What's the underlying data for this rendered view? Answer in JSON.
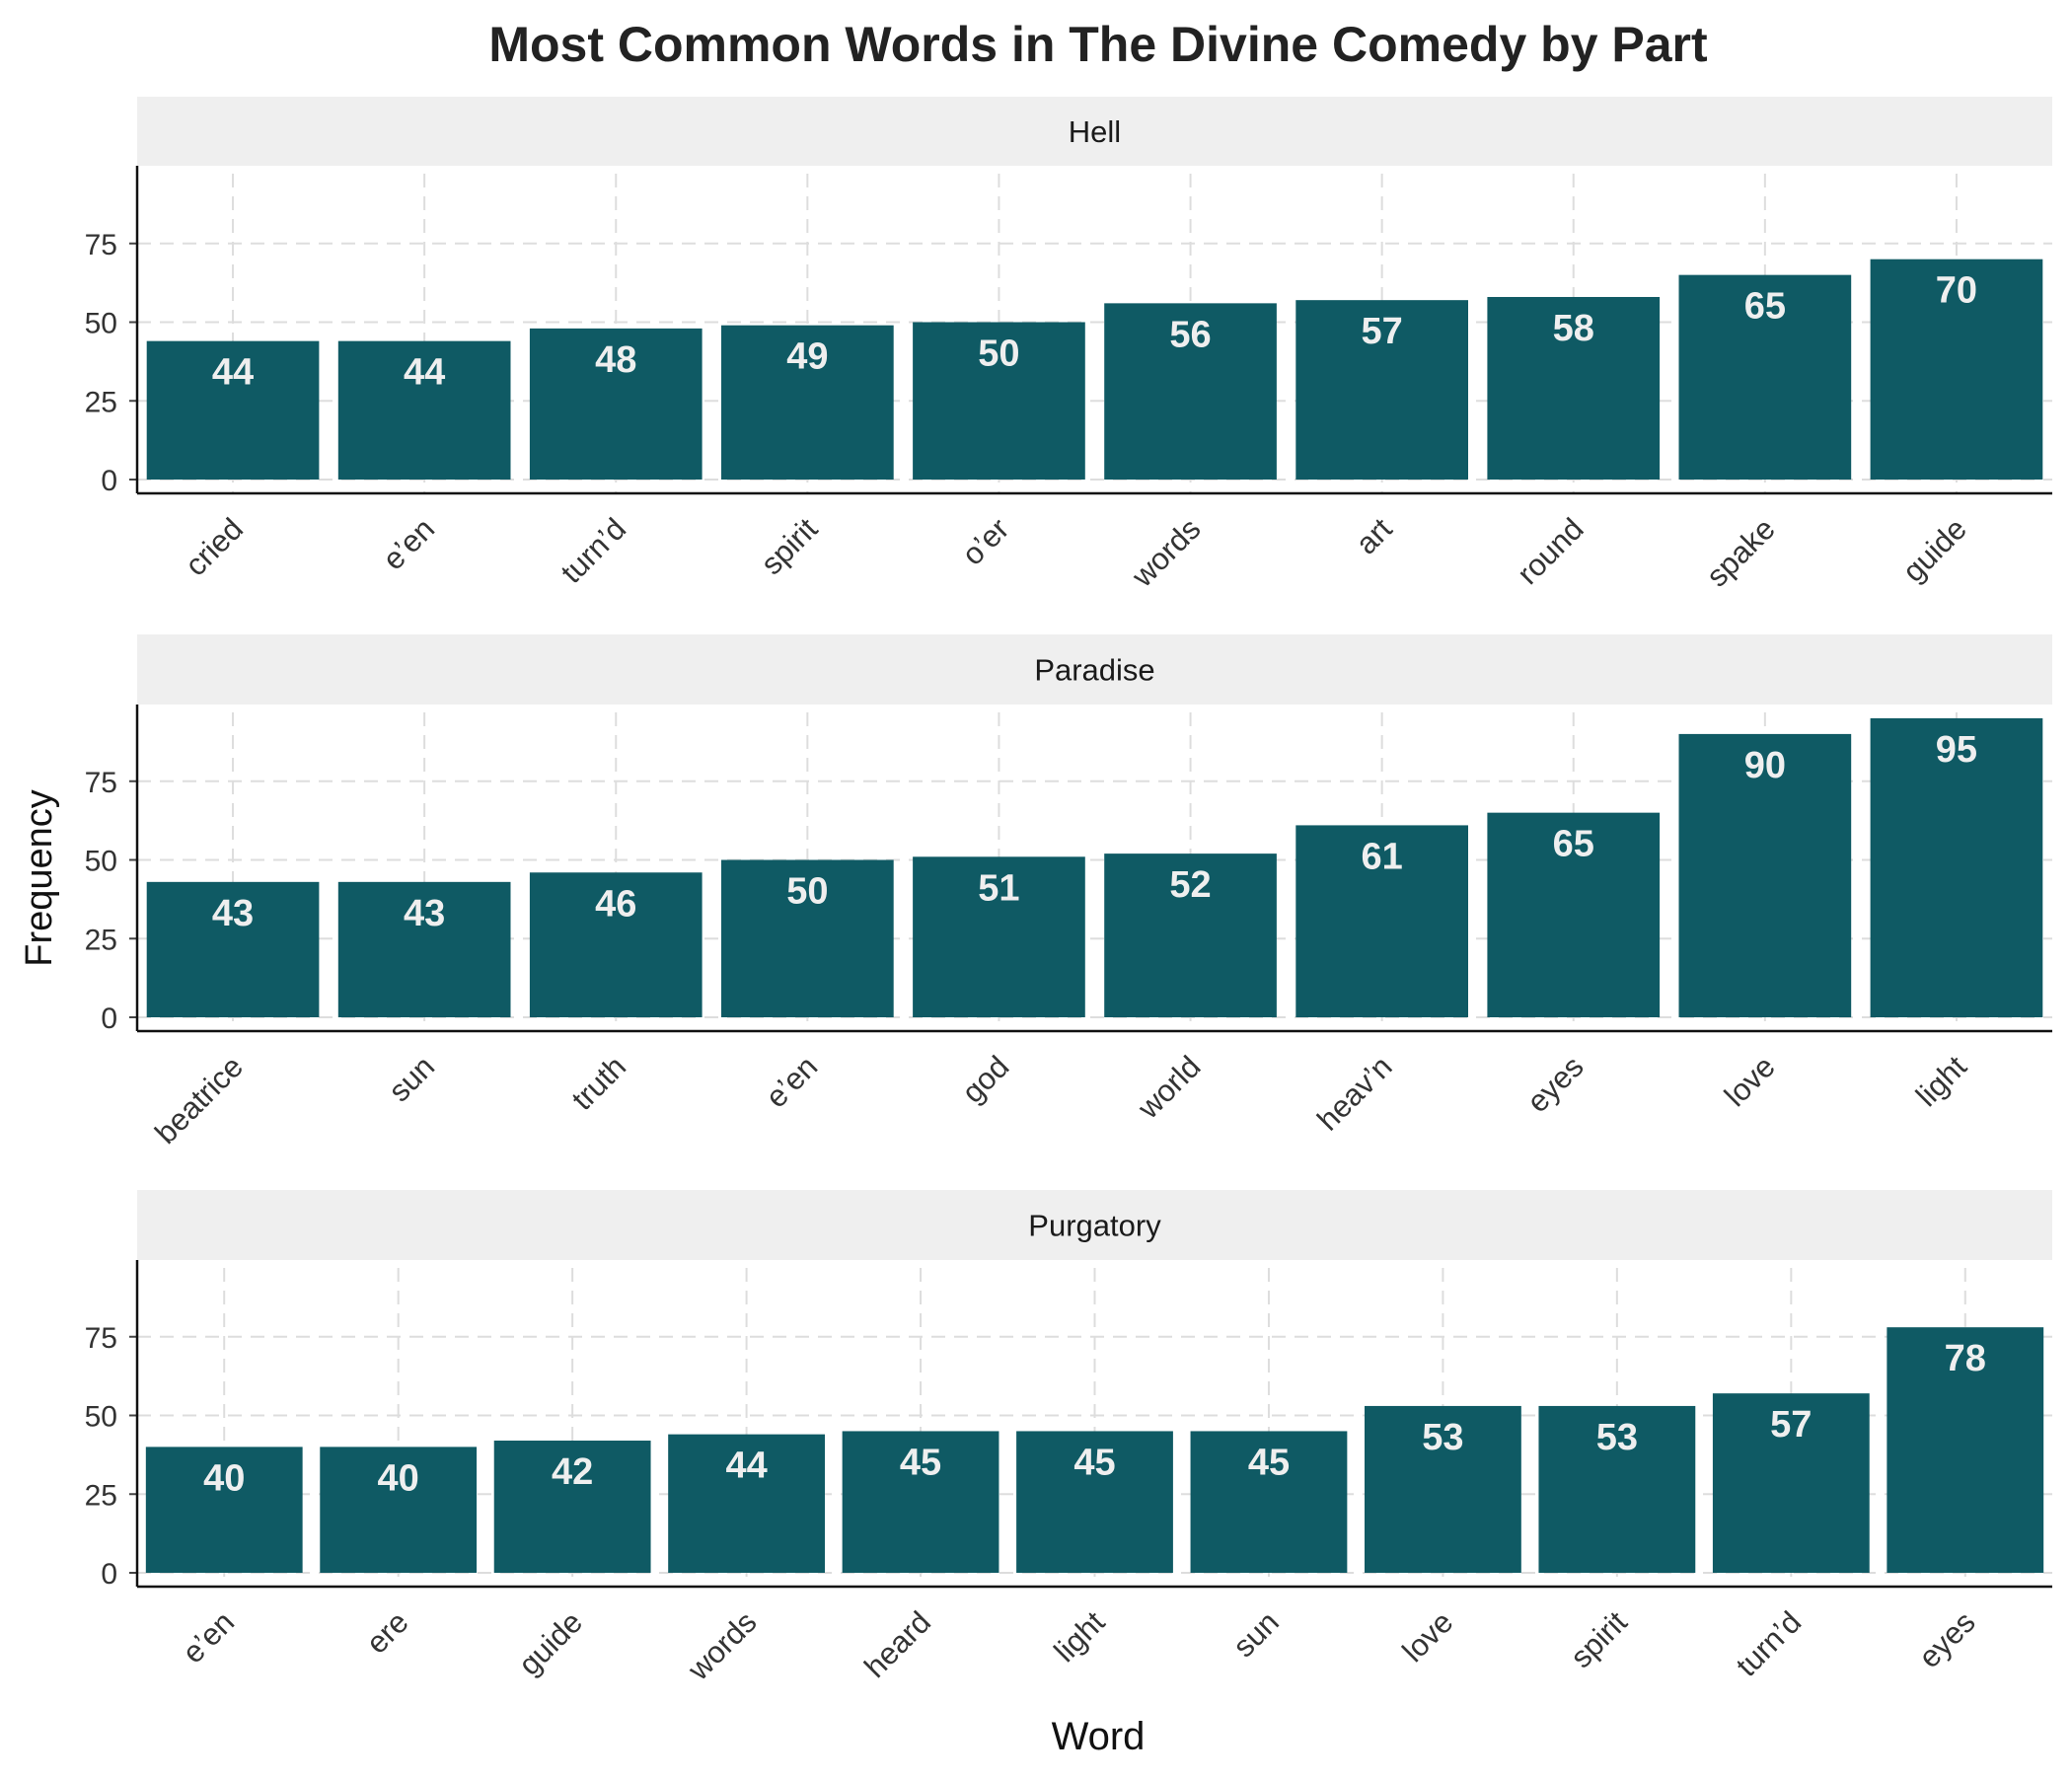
{
  "chart_data": {
    "type": "bar",
    "title": "Most Common Words in The Divine Comedy by Part",
    "xlabel": "Word",
    "ylabel": "Frequency",
    "ylim": [
      0,
      100
    ],
    "y_ticks": [
      0,
      25,
      50,
      75
    ],
    "grid": true,
    "bar_color": "#0f5a64",
    "strip_color": "#efefef",
    "label_color": "#efefef",
    "facets": [
      {
        "name": "Hell",
        "categories": [
          "cried",
          "e’en",
          "turn’d",
          "spirit",
          "o’er",
          "words",
          "art",
          "round",
          "spake",
          "guide"
        ],
        "values": [
          44,
          44,
          48,
          49,
          50,
          56,
          57,
          58,
          65,
          70
        ]
      },
      {
        "name": "Paradise",
        "categories": [
          "beatrice",
          "sun",
          "truth",
          "e’en",
          "god",
          "world",
          "heav’n",
          "eyes",
          "love",
          "light"
        ],
        "values": [
          43,
          43,
          46,
          50,
          51,
          52,
          61,
          65,
          90,
          95
        ]
      },
      {
        "name": "Purgatory",
        "categories": [
          "e’en",
          "ere",
          "guide",
          "words",
          "heard",
          "light",
          "sun",
          "love",
          "spirit",
          "turn’d",
          "eyes"
        ],
        "values": [
          40,
          40,
          42,
          44,
          45,
          45,
          45,
          53,
          53,
          57,
          78
        ]
      }
    ]
  }
}
